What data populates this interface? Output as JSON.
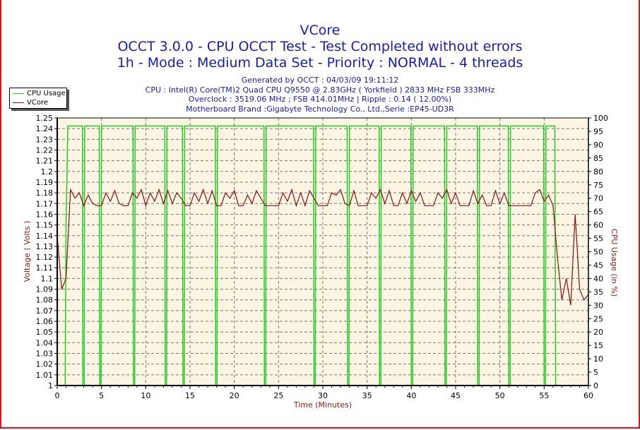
{
  "chart_data": {
    "type": "line",
    "title": "VCore",
    "subtitle_lines": [
      "OCCT 3.0.0 - CPU OCCT Test - Test Completed without errors",
      "1h - Mode : Medium Data Set - Priority : NORMAL - 4 threads"
    ],
    "info_lines": [
      "Generated by OCCT : 04/03/09 19:11:12",
      "CPU : Intel(R) Core(TM)2 Quad CPU Q9550 @ 2.83GHz ( Yorkfield ) 2833 MHz FSB 333MHz",
      "Overclock : 3519.06 MHz ; FSB 414.01MHz | Ripple : 0.14 ( 12.00%)",
      "Motherboard Brand :Gigabyte Technology Co., Ltd.,Serie :EP45-UD3R"
    ],
    "xlabel": "Time (Minutes)",
    "ylabel": "Voltage ( Volts )",
    "y2label": "CPU Usage (in %)",
    "xlim": [
      0,
      60
    ],
    "ylim": [
      1.0,
      1.25
    ],
    "y2lim": [
      0,
      100
    ],
    "x_ticks": [
      "0",
      "5",
      "10",
      "15",
      "20",
      "25",
      "30",
      "35",
      "40",
      "45",
      "50",
      "55",
      "60"
    ],
    "y_ticks": [
      "1",
      "1.01",
      "1.02",
      "1.03",
      "1.04",
      "1.05",
      "1.06",
      "1.07",
      "1.08",
      "1.09",
      "1.1",
      "1.11",
      "1.12",
      "1.13",
      "1.14",
      "1.15",
      "1.16",
      "1.17",
      "1.18",
      "1.19",
      "1.2",
      "1.21",
      "1.22",
      "1.23",
      "1.24",
      "1.25"
    ],
    "y2_ticks": [
      "0",
      "5",
      "10",
      "15",
      "20",
      "25",
      "30",
      "35",
      "40",
      "45",
      "50",
      "55",
      "60",
      "65",
      "70",
      "75",
      "80",
      "85",
      "90",
      "95",
      "100"
    ],
    "grid": true,
    "legend": {
      "placement": "top-left",
      "entries": [
        "CPU Usage",
        "VCore"
      ]
    },
    "series": [
      {
        "name": "CPU Usage",
        "axis": "right",
        "color": "#22cc22",
        "baseline": 97,
        "start_min": 1.0,
        "end_min": 56.3,
        "drop_times": [
          2.9,
          4.8,
          8.6,
          12.2,
          14.2,
          17.9,
          23.4,
          29.0,
          32.8,
          36.4,
          40.0,
          43.8,
          47.5,
          51.0,
          55.0
        ]
      },
      {
        "name": "VCore",
        "axis": "left",
        "color": "#8b1010",
        "x_step": 0.5,
        "values": [
          1.14,
          1.09,
          1.1,
          1.183,
          1.175,
          1.18,
          1.168,
          1.178,
          1.17,
          1.168,
          1.168,
          1.18,
          1.172,
          1.182,
          1.17,
          1.168,
          1.168,
          1.18,
          1.175,
          1.183,
          1.168,
          1.18,
          1.172,
          1.183,
          1.17,
          1.182,
          1.17,
          1.18,
          1.175,
          1.168,
          1.168,
          1.18,
          1.172,
          1.183,
          1.17,
          1.182,
          1.168,
          1.168,
          1.18,
          1.175,
          1.182,
          1.168,
          1.168,
          1.178,
          1.17,
          1.182,
          1.175,
          1.168,
          1.168,
          1.168,
          1.168,
          1.18,
          1.172,
          1.183,
          1.168,
          1.18,
          1.168,
          1.182,
          1.175,
          1.168,
          1.168,
          1.168,
          1.18,
          1.178,
          1.183,
          1.17,
          1.168,
          1.182,
          1.168,
          1.168,
          1.168,
          1.18,
          1.175,
          1.183,
          1.17,
          1.182,
          1.168,
          1.168,
          1.18,
          1.17,
          1.182,
          1.172,
          1.18,
          1.168,
          1.168,
          1.168,
          1.18,
          1.175,
          1.183,
          1.17,
          1.18,
          1.168,
          1.168,
          1.168,
          1.182,
          1.17,
          1.178,
          1.168,
          1.168,
          1.182,
          1.17,
          1.18,
          1.168,
          1.168,
          1.168,
          1.168,
          1.168,
          1.168,
          1.18,
          1.183,
          1.172,
          1.178,
          1.168,
          1.12,
          1.08,
          1.1,
          1.075,
          1.16,
          1.09,
          1.08,
          1.085
        ]
      }
    ]
  }
}
